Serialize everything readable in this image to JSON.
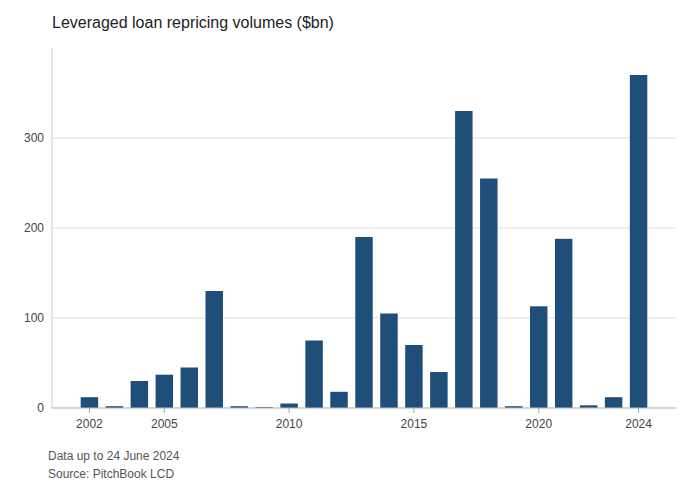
{
  "chart_data": {
    "type": "bar",
    "title": "Leveraged loan repricing volumes ($bn)",
    "x": [
      2002,
      2003,
      2004,
      2005,
      2006,
      2007,
      2008,
      2009,
      2010,
      2011,
      2012,
      2013,
      2014,
      2015,
      2016,
      2017,
      2018,
      2019,
      2020,
      2021,
      2022,
      2023,
      2024
    ],
    "values": [
      12,
      2,
      30,
      37,
      45,
      130,
      2,
      1,
      5,
      75,
      18,
      190,
      105,
      70,
      40,
      330,
      255,
      2,
      113,
      188,
      3,
      12,
      370
    ],
    "color": "#1f4e79",
    "xlim": [
      2000.5,
      2025.5
    ],
    "xticks": [
      2002,
      2005,
      2010,
      2015,
      2020,
      2024
    ],
    "ylim": [
      0,
      400
    ],
    "yticks": [
      0,
      100,
      200,
      300
    ],
    "grid": true,
    "annotations": [
      "Data up to 24 June 2024",
      "Source: PitchBook LCD"
    ]
  }
}
